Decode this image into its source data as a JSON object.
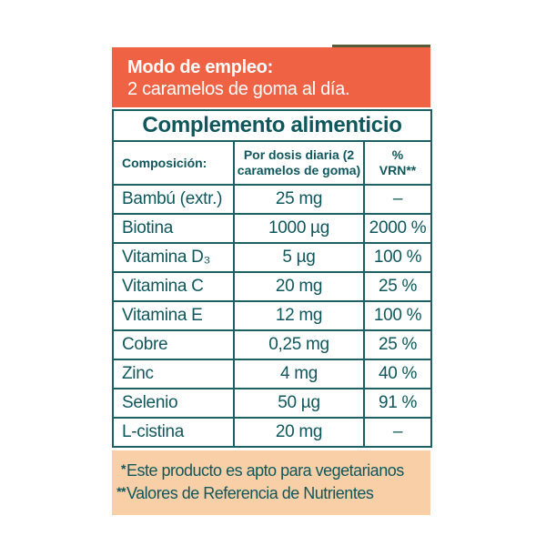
{
  "banner": {
    "title": "Modo de empleo:",
    "subtitle": "2 caramelos de goma al día."
  },
  "table": {
    "title": "Complemento alimenticio",
    "columns": {
      "composition": "Composición:",
      "dose": "Por dosis diaria (2 caramelos de goma)",
      "vrn_line1": "%",
      "vrn_line2": "VRN**"
    },
    "rows": [
      {
        "name": "Bambú (extr.)",
        "dose": "25 mg",
        "vrn": "–"
      },
      {
        "name": "Biotina",
        "dose": "1000 µg",
        "vrn": "2000 %"
      },
      {
        "name": "Vitamina D₃",
        "dose": "5 µg",
        "vrn": "100 %"
      },
      {
        "name": "Vitamina C",
        "dose": "20 mg",
        "vrn": "25 %"
      },
      {
        "name": "Vitamina E",
        "dose": "12 mg",
        "vrn": "100 %"
      },
      {
        "name": "Cobre",
        "dose": "0,25 mg",
        "vrn": "25 %"
      },
      {
        "name": "Zinc",
        "dose": "4 mg",
        "vrn": "40 %"
      },
      {
        "name": "Selenio",
        "dose": "50 µg",
        "vrn": "91 %"
      },
      {
        "name": "L-cistina",
        "dose": "20 mg",
        "vrn": "–"
      }
    ]
  },
  "footnotes": [
    {
      "marker": "*",
      "text": "Este producto es apto para vegetarianos"
    },
    {
      "marker": "**",
      "text": "Valores de Referencia de Nutrientes"
    }
  ],
  "colors": {
    "orange": "#ef6243",
    "teal_text": "#0f575c",
    "teal_border": "#1b6063",
    "peach": "#f9cfa7",
    "olive_line": "#575b38"
  }
}
